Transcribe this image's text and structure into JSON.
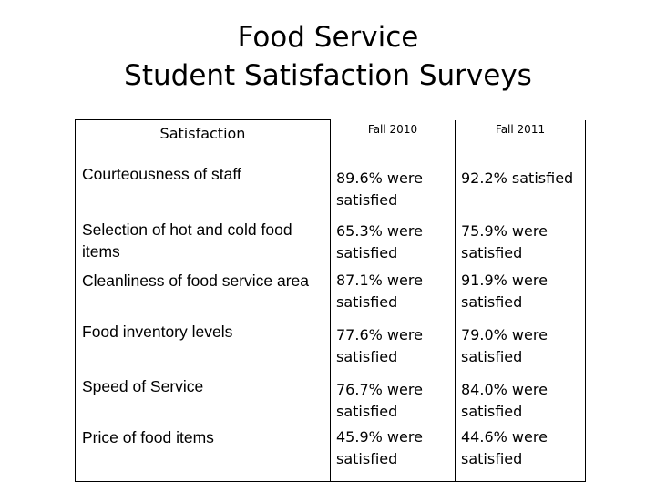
{
  "title": {
    "line1": "Food Service",
    "line2": "Student Satisfaction Surveys"
  },
  "table": {
    "headers": {
      "criteria": "Satisfaction",
      "fall2010": "Fall 2010",
      "fall2011": "Fall 2011"
    },
    "rows": [
      {
        "criteria": "Courteousness of staff",
        "fall2010": "89.6% were satisfied",
        "fall2011": "92.2% satisfied"
      },
      {
        "criteria": "Selection of hot and cold food items",
        "fall2010": "65.3% were satisfied",
        "fall2011": "75.9% were satisfied"
      },
      {
        "criteria": "Cleanliness of food service area",
        "fall2010": "87.1% were satisfied",
        "fall2011": "91.9% were satisfied"
      },
      {
        "criteria": "Food inventory levels",
        "fall2010": "77.6% were satisfied",
        "fall2011": "79.0% were satisfied"
      },
      {
        "criteria": "Speed of Service",
        "fall2010": "76.7% were satisfied",
        "fall2011": "84.0% were satisfied"
      },
      {
        "criteria": "Price of food items",
        "fall2010": "45.9% were satisfied",
        "fall2011": "44.6% were satisfied"
      }
    ]
  }
}
